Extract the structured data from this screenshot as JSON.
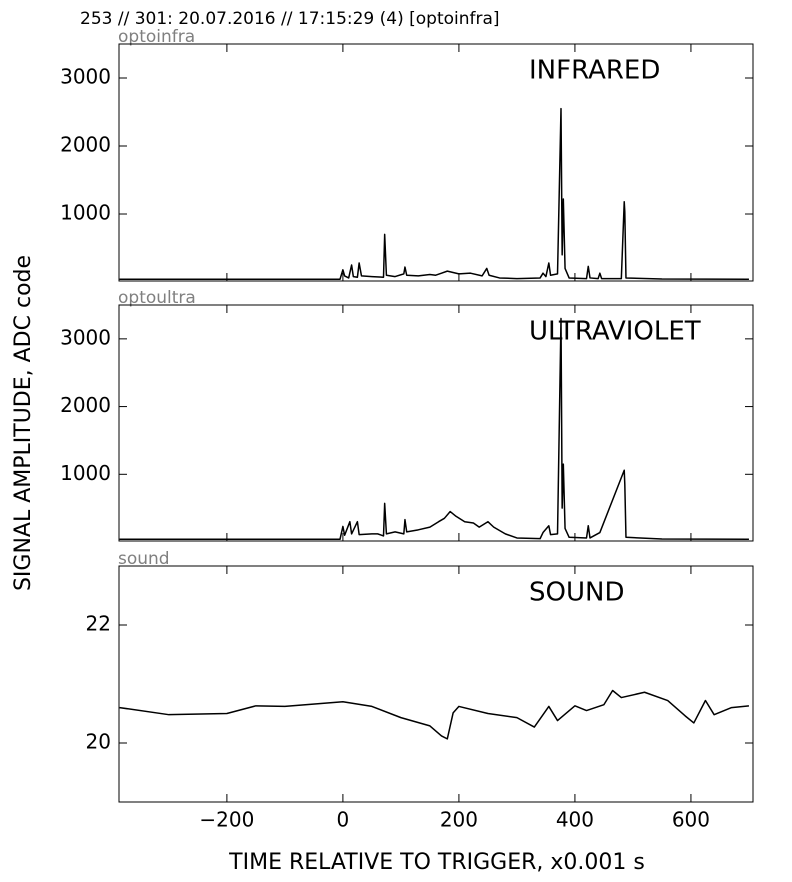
{
  "title": "253 // 301:   20.07.2016 // 17:15:29 (4)  [optoinfra]",
  "ylabel": "SIGNAL AMPLITUDE,  ADC code",
  "xlabel": "TIME RELATIVE TO TRIGGER,   x0.001 s",
  "chart_data": [
    {
      "type": "line",
      "title": "optoinfra",
      "annotation": "INFRARED",
      "color": "#000000",
      "xlim": [
        -386,
        707
      ],
      "xticks": [
        {
          "value": -200,
          "label": "−200"
        },
        0,
        200,
        400,
        600
      ],
      "ylim": [
        15,
        3500
      ],
      "yticks": [
        1000,
        2000,
        3000
      ],
      "x": [
        -385,
        -300,
        -200,
        -100,
        -5,
        0,
        3,
        10,
        15,
        18,
        25,
        28,
        32,
        50,
        70,
        72,
        75,
        90,
        105,
        107,
        110,
        130,
        150,
        160,
        170,
        180,
        190,
        200,
        220,
        240,
        248,
        252,
        270,
        300,
        340,
        345,
        350,
        355,
        358,
        370,
        376,
        378,
        380,
        383,
        390,
        420,
        423,
        426,
        440,
        443,
        446,
        480,
        485,
        486,
        488,
        550,
        700
      ],
      "values": [
        40,
        40,
        40,
        40,
        40,
        180,
        90,
        60,
        250,
        80,
        70,
        280,
        90,
        80,
        70,
        700,
        100,
        80,
        120,
        220,
        100,
        90,
        110,
        100,
        130,
        160,
        140,
        120,
        130,
        90,
        200,
        100,
        60,
        50,
        60,
        130,
        80,
        280,
        100,
        120,
        2550,
        400,
        1220,
        200,
        60,
        50,
        230,
        60,
        50,
        130,
        50,
        50,
        1180,
        1030,
        60,
        45,
        40
      ]
    },
    {
      "type": "line",
      "title": "optoultra",
      "annotation": "ULTRAVIOLET",
      "color": "#000000",
      "xlim": [
        -386,
        707
      ],
      "xticks": [
        {
          "value": -200,
          "label": "−200"
        },
        0,
        200,
        400,
        600
      ],
      "ylim": [
        15,
        3500
      ],
      "yticks": [
        1000,
        2000,
        3000
      ],
      "x": [
        -385,
        -300,
        -200,
        -100,
        -5,
        0,
        3,
        12,
        15,
        25,
        28,
        50,
        60,
        70,
        72,
        75,
        90,
        105,
        107,
        110,
        130,
        150,
        165,
        175,
        185,
        195,
        210,
        225,
        235,
        250,
        260,
        280,
        300,
        340,
        345,
        355,
        358,
        370,
        376,
        378,
        380,
        383,
        390,
        420,
        423,
        426,
        443,
        485,
        486,
        488,
        550,
        700
      ],
      "values": [
        40,
        40,
        40,
        40,
        40,
        230,
        100,
        300,
        120,
        300,
        110,
        120,
        120,
        90,
        570,
        120,
        150,
        120,
        330,
        150,
        180,
        220,
        300,
        350,
        450,
        380,
        300,
        280,
        220,
        300,
        220,
        120,
        60,
        50,
        140,
        240,
        110,
        120,
        3300,
        500,
        1150,
        200,
        70,
        60,
        240,
        60,
        140,
        1060,
        850,
        70,
        45,
        40
      ]
    },
    {
      "type": "line",
      "title": "sound",
      "annotation": "SOUND",
      "color": "#000000",
      "xlim": [
        -386,
        707
      ],
      "xticks": [
        {
          "value": -200,
          "label": "−200"
        },
        0,
        200,
        400,
        600
      ],
      "ylim": [
        19,
        23
      ],
      "yticks": [
        20,
        22
      ],
      "x": [
        -385,
        -300,
        -200,
        -150,
        -100,
        0,
        50,
        100,
        150,
        170,
        180,
        190,
        200,
        250,
        300,
        330,
        355,
        370,
        400,
        420,
        450,
        465,
        480,
        520,
        560,
        590,
        605,
        625,
        640,
        670,
        700
      ],
      "values": [
        20.6,
        20.48,
        20.5,
        20.63,
        20.62,
        20.7,
        20.62,
        20.43,
        20.29,
        20.12,
        20.07,
        20.51,
        20.62,
        20.5,
        20.43,
        20.27,
        20.62,
        20.38,
        20.63,
        20.55,
        20.65,
        20.89,
        20.77,
        20.86,
        20.72,
        20.46,
        20.34,
        20.72,
        20.48,
        20.6,
        20.63
      ]
    }
  ]
}
